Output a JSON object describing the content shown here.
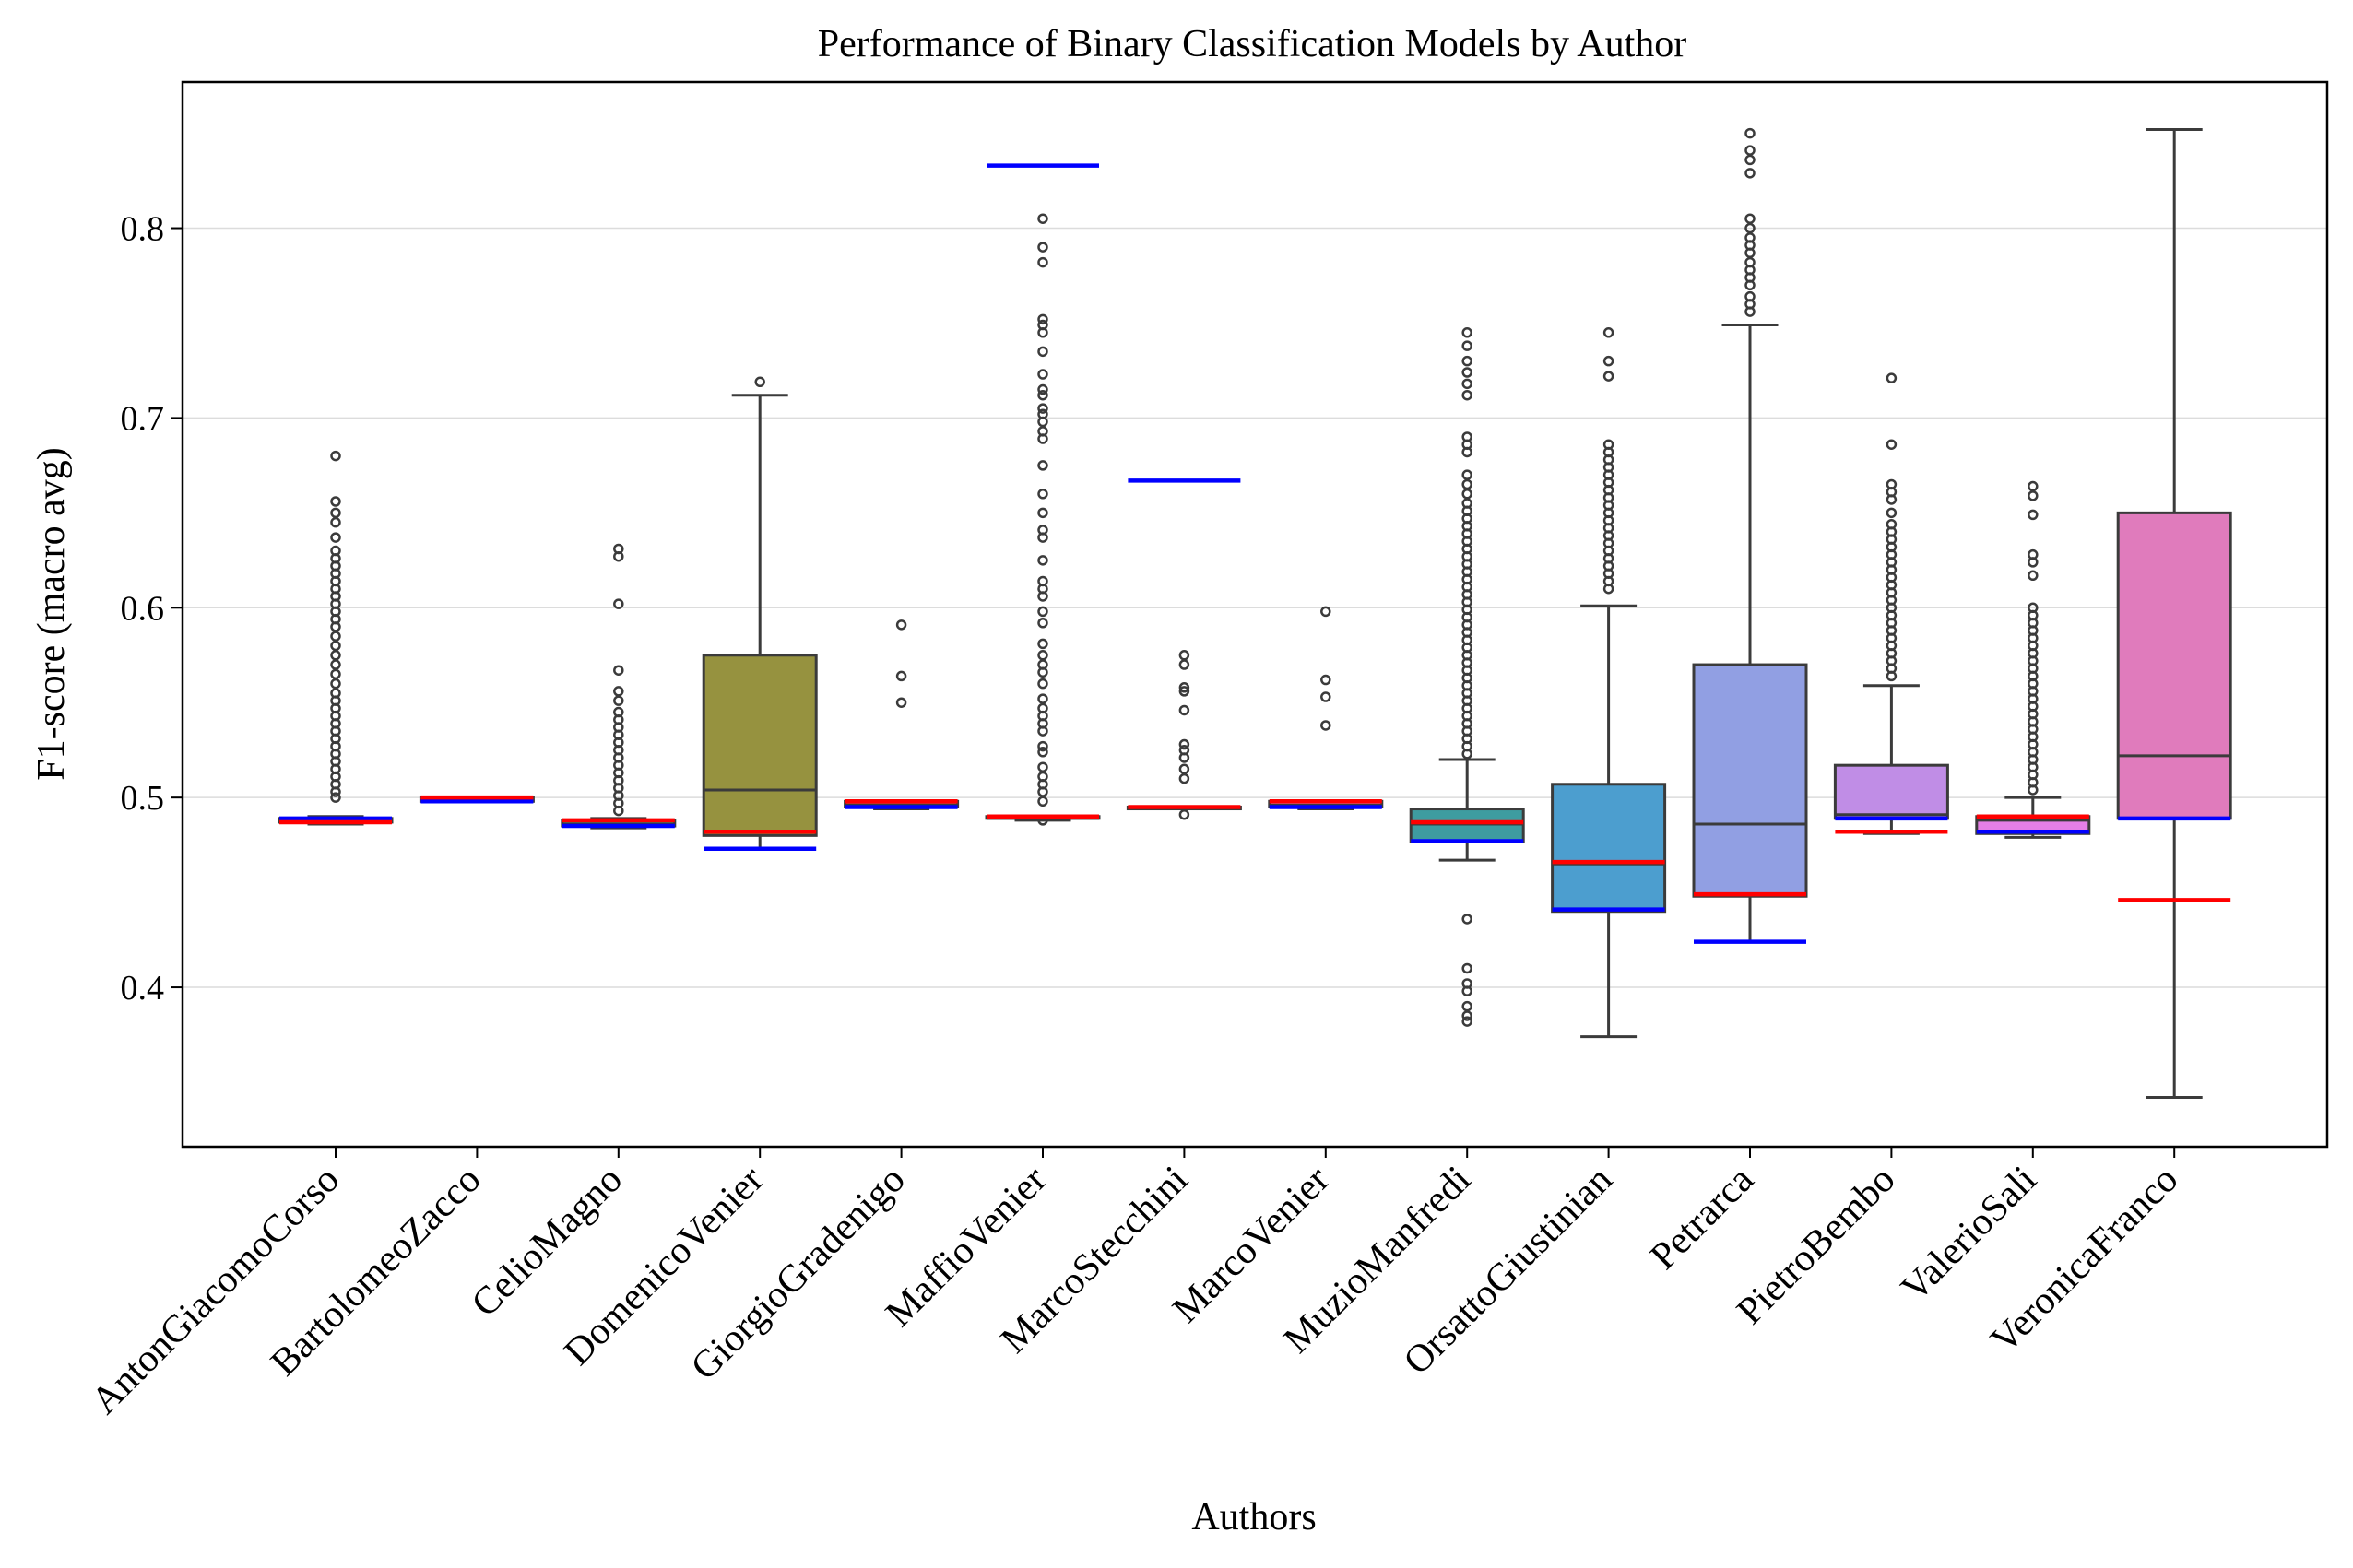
{
  "chart_data": {
    "type": "box",
    "title": "Performance of Binary Classification Models by Author",
    "xlabel": "Authors",
    "ylabel": "F1-score (macro avg)",
    "ylim": [
      0.316,
      0.877
    ],
    "yticks": [
      0.4,
      0.5,
      0.6,
      0.7,
      0.8
    ],
    "ytick_labels": [
      "0.4",
      "0.5",
      "0.6",
      "0.7",
      "0.8"
    ],
    "grid": "horizontal",
    "reference_line_colors": {
      "red": "#ff0000",
      "blue": "#0000ff"
    },
    "categories": [
      "AntonGiacomoCorso",
      "BartolomeoZacco",
      "CelioMagno",
      "DomenicoVenier",
      "GiorgioGradenigo",
      "MaffioVenier",
      "MarcoStecchini",
      "MarcoVenier",
      "MuzioManfredi",
      "OrsattoGiustinian",
      "Petrarca",
      "PietroBembo",
      "ValerioSali",
      "VeronicaFranco"
    ],
    "boxes": [
      {
        "color": "#4c72b0",
        "whislo": 0.486,
        "q1": 0.487,
        "med": 0.488,
        "q3": 0.489,
        "whishi": 0.49,
        "red": 0.487,
        "blue": 0.489,
        "fliers": [
          0.68,
          0.656,
          0.65,
          0.645,
          0.637,
          0.63,
          0.626,
          0.622,
          0.618,
          0.614,
          0.61,
          0.606,
          0.602,
          0.598,
          0.594,
          0.59,
          0.585,
          0.58,
          0.575,
          0.57,
          0.565,
          0.56,
          0.555,
          0.551,
          0.547,
          0.543,
          0.539,
          0.535,
          0.531,
          0.527,
          0.523,
          0.519,
          0.515,
          0.511,
          0.507,
          0.503,
          0.5
        ]
      },
      {
        "color": "#dd8452",
        "whislo": 0.498,
        "q1": 0.498,
        "med": 0.499,
        "q3": 0.5,
        "whishi": 0.5,
        "red": 0.5,
        "blue": 0.498,
        "fliers": []
      },
      {
        "color": "#55a868",
        "whislo": 0.484,
        "q1": 0.485,
        "med": 0.486,
        "q3": 0.488,
        "whishi": 0.489,
        "red": 0.488,
        "blue": 0.485,
        "fliers": [
          0.631,
          0.627,
          0.602,
          0.567,
          0.556,
          0.551,
          0.545,
          0.541,
          0.537,
          0.533,
          0.529,
          0.525,
          0.521,
          0.517,
          0.513,
          0.509,
          0.505,
          0.501,
          0.497,
          0.493
        ]
      },
      {
        "color": "#96923f",
        "whislo": 0.473,
        "q1": 0.48,
        "med": 0.504,
        "q3": 0.575,
        "whishi": 0.712,
        "red": 0.482,
        "blue": 0.473,
        "fliers": [
          0.719
        ]
      },
      {
        "color": "#c44e52",
        "whislo": 0.494,
        "q1": 0.495,
        "med": 0.496,
        "q3": 0.498,
        "whishi": 0.498,
        "red": 0.498,
        "blue": 0.495,
        "fliers": [
          0.591,
          0.564,
          0.55
        ]
      },
      {
        "color": "#8172b3",
        "whislo": 0.488,
        "q1": 0.489,
        "med": 0.489,
        "q3": 0.49,
        "whishi": 0.49,
        "red": 0.49,
        "blue": 0.833,
        "fliers": [
          0.805,
          0.79,
          0.782,
          0.752,
          0.749,
          0.745,
          0.735,
          0.723,
          0.715,
          0.712,
          0.705,
          0.702,
          0.698,
          0.693,
          0.689,
          0.675,
          0.66,
          0.65,
          0.641,
          0.637,
          0.625,
          0.614,
          0.61,
          0.606,
          0.598,
          0.592,
          0.581,
          0.575,
          0.57,
          0.566,
          0.56,
          0.552,
          0.547,
          0.543,
          0.539,
          0.535,
          0.527,
          0.524,
          0.516,
          0.511,
          0.507,
          0.503,
          0.498,
          0.488
        ]
      },
      {
        "color": "#937860",
        "whislo": 0.494,
        "q1": 0.494,
        "med": 0.495,
        "q3": 0.495,
        "whishi": 0.495,
        "red": 0.495,
        "blue": 0.667,
        "fliers": [
          0.575,
          0.57,
          0.558,
          0.556,
          0.546,
          0.528,
          0.525,
          0.521,
          0.515,
          0.51,
          0.491
        ]
      },
      {
        "color": "#da8bc3",
        "whislo": 0.494,
        "q1": 0.495,
        "med": 0.496,
        "q3": 0.498,
        "whishi": 0.498,
        "red": 0.498,
        "blue": 0.495,
        "fliers": [
          0.598,
          0.562,
          0.553,
          0.538
        ]
      },
      {
        "color": "#3e9ca0",
        "whislo": 0.467,
        "q1": 0.477,
        "med": 0.486,
        "q3": 0.494,
        "whishi": 0.52,
        "red": 0.487,
        "blue": 0.477,
        "fliers": [
          0.745,
          0.738,
          0.73,
          0.724,
          0.718,
          0.712,
          0.69,
          0.686,
          0.682,
          0.67,
          0.665,
          0.66,
          0.655,
          0.651,
          0.647,
          0.643,
          0.639,
          0.635,
          0.631,
          0.627,
          0.623,
          0.619,
          0.615,
          0.611,
          0.607,
          0.603,
          0.599,
          0.595,
          0.591,
          0.587,
          0.583,
          0.579,
          0.575,
          0.571,
          0.567,
          0.563,
          0.559,
          0.555,
          0.551,
          0.547,
          0.543,
          0.539,
          0.535,
          0.531,
          0.527,
          0.523,
          0.436,
          0.41,
          0.402,
          0.398,
          0.39,
          0.385,
          0.382
        ]
      },
      {
        "color": "#4c9ecf",
        "whislo": 0.374,
        "q1": 0.44,
        "med": 0.465,
        "q3": 0.507,
        "whishi": 0.601,
        "red": 0.466,
        "blue": 0.441,
        "fliers": [
          0.745,
          0.73,
          0.722,
          0.686,
          0.682,
          0.678,
          0.674,
          0.67,
          0.666,
          0.662,
          0.658,
          0.654,
          0.65,
          0.646,
          0.642,
          0.638,
          0.634,
          0.63,
          0.626,
          0.622,
          0.618,
          0.614,
          0.61
        ]
      },
      {
        "color": "#919fe3",
        "whislo": 0.424,
        "q1": 0.448,
        "med": 0.486,
        "q3": 0.57,
        "whishi": 0.749,
        "red": 0.449,
        "blue": 0.424,
        "fliers": [
          0.85,
          0.841,
          0.836,
          0.829,
          0.805,
          0.8,
          0.795,
          0.791,
          0.787,
          0.782,
          0.778,
          0.774,
          0.77,
          0.764,
          0.76,
          0.756
        ]
      },
      {
        "color": "#c08de6",
        "whislo": 0.481,
        "q1": 0.489,
        "med": 0.491,
        "q3": 0.517,
        "whishi": 0.559,
        "red": 0.482,
        "blue": 0.489,
        "fliers": [
          0.721,
          0.686,
          0.665,
          0.661,
          0.657,
          0.65,
          0.644,
          0.64,
          0.636,
          0.632,
          0.628,
          0.624,
          0.62,
          0.616,
          0.612,
          0.608,
          0.604,
          0.6,
          0.596,
          0.592,
          0.588,
          0.584,
          0.58,
          0.576,
          0.572,
          0.568,
          0.564
        ]
      },
      {
        "color": "#e57fe6",
        "whislo": 0.479,
        "q1": 0.481,
        "med": 0.488,
        "q3": 0.49,
        "whishi": 0.5,
        "red": 0.49,
        "blue": 0.482,
        "fliers": [
          0.664,
          0.659,
          0.649,
          0.628,
          0.624,
          0.617,
          0.6,
          0.596,
          0.592,
          0.588,
          0.584,
          0.58,
          0.576,
          0.572,
          0.568,
          0.564,
          0.56,
          0.556,
          0.552,
          0.548,
          0.544,
          0.54,
          0.536,
          0.532,
          0.528,
          0.524,
          0.52,
          0.516,
          0.512,
          0.508,
          0.504
        ]
      },
      {
        "color": "#e07bbc",
        "whislo": 0.342,
        "q1": 0.489,
        "med": 0.522,
        "q3": 0.65,
        "whishi": 0.852,
        "red": 0.446,
        "blue": 0.489,
        "fliers": []
      }
    ]
  }
}
